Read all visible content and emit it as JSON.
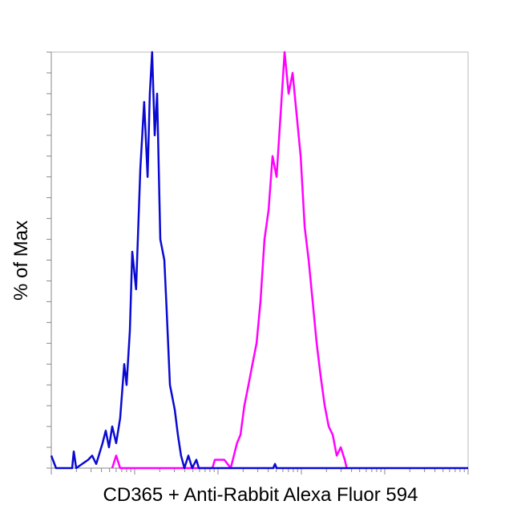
{
  "chart_data": {
    "type": "line",
    "x_label": "CD365 + Anti-Rabbit Alexa Fluor 594",
    "y_label": "% of Max",
    "xscale": "log",
    "xlim": [
      1,
      100000
    ],
    "ylim": [
      0,
      100
    ],
    "xticks": [
      1,
      2,
      3,
      4,
      5,
      6,
      7,
      8,
      9,
      10,
      20,
      30,
      40,
      50,
      60,
      70,
      80,
      90,
      100,
      200,
      300,
      400,
      500,
      600,
      700,
      800,
      900,
      1000,
      2000,
      3000,
      4000,
      5000,
      6000,
      7000,
      8000,
      9000,
      10000,
      20000,
      30000,
      40000,
      50000,
      60000,
      70000,
      80000,
      90000,
      100000
    ],
    "yticks": [
      0,
      5,
      10,
      15,
      20,
      25,
      30,
      35,
      40,
      45,
      50,
      55,
      60,
      65,
      70,
      75,
      80,
      85,
      90,
      95,
      100
    ],
    "series": [
      {
        "name": "Anti-Rabbit Alexa Fluor 594",
        "color": "#ff00ff",
        "x": [
          5.38,
          6.0,
          6.7,
          85.7,
          91.6,
          119,
          142,
          155,
          169,
          186,
          207,
          232,
          259,
          290,
          323,
          361,
          404,
          451,
          504,
          563,
          629,
          703,
          785,
          877,
          980,
          1095,
          1223,
          1366,
          1526,
          1705,
          1905,
          2128,
          2377,
          2655,
          2966,
          3314,
          3500
        ],
        "values": [
          0,
          3,
          0,
          0,
          2,
          2,
          0,
          3,
          6,
          8,
          15,
          20,
          25,
          30,
          40,
          55,
          62,
          75,
          70,
          85,
          100,
          90,
          95,
          85,
          75,
          58,
          50,
          40,
          30,
          22,
          15,
          10,
          8,
          3,
          5,
          2,
          0
        ]
      },
      {
        "name": "CD365",
        "color": "#0a0ad2",
        "x": [
          1,
          1.14,
          1.78,
          1.86,
          1.99,
          2.77,
          3.09,
          3.46,
          4.12,
          4.5,
          4.92,
          5.38,
          6.0,
          6.7,
          7.5,
          8.0,
          8.76,
          9.36,
          10.4,
          11.7,
          13.0,
          14.3,
          15.2,
          16.2,
          17.4,
          18.6,
          20.3,
          22.7,
          24.2,
          26.5,
          30.3,
          33.0,
          36.0,
          39.5,
          44.1,
          49.0,
          55.0,
          58.8,
          460,
          482,
          505,
          100000
        ],
        "values": [
          3,
          0,
          0,
          4,
          0,
          2,
          3,
          1,
          6,
          9,
          5,
          10,
          6,
          12,
          25,
          20,
          33,
          52,
          43,
          72,
          88,
          70,
          90,
          100,
          80,
          90,
          55,
          50,
          38,
          20,
          14,
          8,
          3,
          0,
          3,
          0,
          2,
          0,
          0,
          1,
          0,
          0
        ]
      }
    ]
  }
}
